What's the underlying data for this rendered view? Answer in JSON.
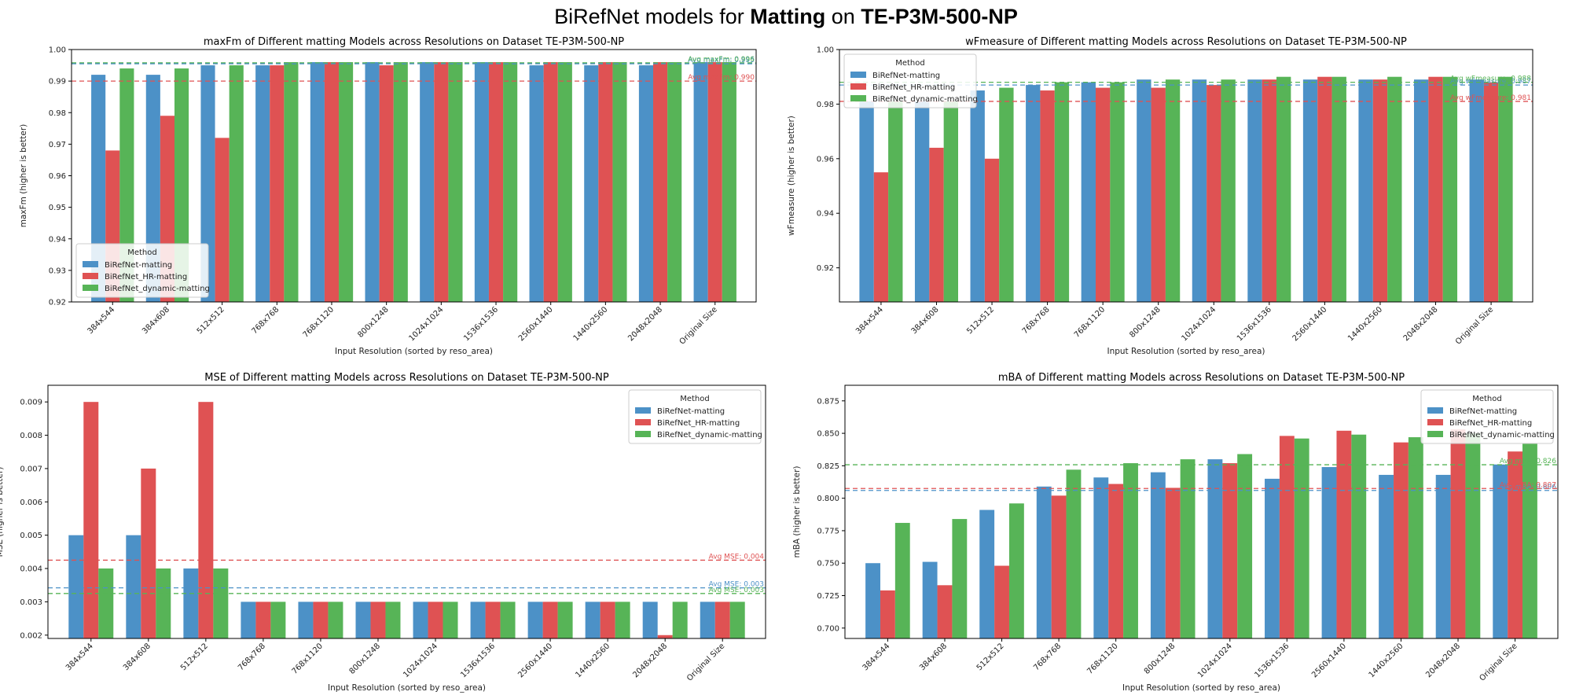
{
  "page": {
    "title_prefix": "BiRefNet models for ",
    "title_bold1": "Matting",
    "title_mid": " on ",
    "title_bold2": "TE-P3M-500-NP"
  },
  "colors": {
    "BiRefNet-matting": "#4c91c7",
    "BiRefNet_HR-matting": "#df5253",
    "BiRefNet_dynamic-matting": "#57b457"
  },
  "chart_data": [
    {
      "type": "bar",
      "title": "maxFm of Different matting Models across Resolutions on Dataset TE-P3M-500-NP",
      "xlabel": "Input Resolution (sorted by reso_area)",
      "ylabel": "maxFm (higher is better)",
      "ylim": [
        0.92,
        1.0
      ],
      "yticks": [
        "0.92",
        "0.93",
        "0.94",
        "0.95",
        "0.96",
        "0.97",
        "0.98",
        "0.99",
        "1.00"
      ],
      "legend_title": "Method",
      "legend_loc": "lower-left",
      "categories": [
        "384x544",
        "384x608",
        "512x512",
        "768x768",
        "768x1120",
        "800x1248",
        "1024x1024",
        "1536x1536",
        "2560x1440",
        "1440x2560",
        "2048x2048",
        "Original Size"
      ],
      "series": [
        {
          "name": "BiRefNet-matting",
          "values": [
            0.992,
            0.992,
            0.995,
            0.995,
            0.996,
            0.996,
            0.996,
            0.996,
            0.995,
            0.995,
            0.995,
            0.996
          ]
        },
        {
          "name": "BiRefNet_HR-matting",
          "values": [
            0.968,
            0.979,
            0.972,
            0.995,
            0.996,
            0.995,
            0.996,
            0.996,
            0.996,
            0.996,
            0.996,
            0.996
          ]
        },
        {
          "name": "BiRefNet_dynamic-matting",
          "values": [
            0.994,
            0.994,
            0.995,
            0.996,
            0.996,
            0.996,
            0.996,
            0.996,
            0.996,
            0.996,
            0.996,
            0.996
          ]
        }
      ],
      "averages": [
        {
          "series": "BiRefNet-matting",
          "value": 0.9955,
          "label": "Avg maxFm: 0.995"
        },
        {
          "series": "BiRefNet_HR-matting",
          "value": 0.99,
          "label": "Avg maxFm: 0.990"
        },
        {
          "series": "BiRefNet_dynamic-matting",
          "value": 0.9958,
          "label": "Avg maxFm: 0.996"
        }
      ]
    },
    {
      "type": "bar",
      "title": "wFmeasure of Different matting Models across Resolutions on Dataset TE-P3M-500-NP",
      "xlabel": "Input Resolution (sorted by reso_area)",
      "ylabel": "wFmeasure (higher is better)",
      "ylim": [
        0.9075,
        1.0
      ],
      "yticks": [
        "0.92",
        "0.94",
        "0.96",
        "0.98",
        "1.00"
      ],
      "legend_title": "Method",
      "legend_loc": "top-left",
      "categories": [
        "384x544",
        "384x608",
        "512x512",
        "768x768",
        "768x1120",
        "800x1248",
        "1024x1024",
        "1536x1536",
        "2560x1440",
        "1440x2560",
        "2048x2048",
        "Original Size"
      ],
      "series": [
        {
          "name": "BiRefNet-matting",
          "values": [
            0.981,
            0.981,
            0.985,
            0.987,
            0.988,
            0.989,
            0.989,
            0.989,
            0.989,
            0.989,
            0.989,
            0.989
          ]
        },
        {
          "name": "BiRefNet_HR-matting",
          "values": [
            0.955,
            0.964,
            0.96,
            0.985,
            0.986,
            0.986,
            0.987,
            0.989,
            0.99,
            0.989,
            0.99,
            0.988
          ]
        },
        {
          "name": "BiRefNet_dynamic-matting",
          "values": [
            0.981,
            0.981,
            0.986,
            0.988,
            0.988,
            0.989,
            0.989,
            0.99,
            0.99,
            0.99,
            0.99,
            0.99
          ]
        }
      ],
      "averages": [
        {
          "series": "BiRefNet-matting",
          "value": 0.987,
          "label": "Avg wFmeasure: 0.987"
        },
        {
          "series": "BiRefNet_HR-matting",
          "value": 0.981,
          "label": "Avg wFmeasure: 0.981"
        },
        {
          "series": "BiRefNet_dynamic-matting",
          "value": 0.988,
          "label": "Avg wFmeasure: 0.988"
        }
      ]
    },
    {
      "type": "bar",
      "title": "MSE of Different matting Models across Resolutions on Dataset TE-P3M-500-NP",
      "xlabel": "Input Resolution (sorted by reso_area)",
      "ylabel": "MSE (higher is better)",
      "ylim": [
        0.0019,
        0.0095
      ],
      "yticks": [
        "0.002",
        "0.003",
        "0.004",
        "0.005",
        "0.006",
        "0.007",
        "0.008",
        "0.009"
      ],
      "legend_title": "Method",
      "legend_loc": "top-right",
      "categories": [
        "384x544",
        "384x608",
        "512x512",
        "768x768",
        "768x1120",
        "800x1248",
        "1024x1024",
        "1536x1536",
        "2560x1440",
        "1440x2560",
        "2048x2048",
        "Original Size"
      ],
      "series": [
        {
          "name": "BiRefNet-matting",
          "values": [
            0.005,
            0.005,
            0.004,
            0.003,
            0.003,
            0.003,
            0.003,
            0.003,
            0.003,
            0.003,
            0.003,
            0.003
          ]
        },
        {
          "name": "BiRefNet_HR-matting",
          "values": [
            0.009,
            0.007,
            0.009,
            0.003,
            0.003,
            0.003,
            0.003,
            0.003,
            0.003,
            0.003,
            0.002,
            0.003
          ]
        },
        {
          "name": "BiRefNet_dynamic-matting",
          "values": [
            0.004,
            0.004,
            0.004,
            0.003,
            0.003,
            0.003,
            0.003,
            0.003,
            0.003,
            0.003,
            0.003,
            0.003
          ]
        }
      ],
      "averages": [
        {
          "series": "BiRefNet-matting",
          "value": 0.00342,
          "label": "Avg MSE: 0.003"
        },
        {
          "series": "BiRefNet_HR-matting",
          "value": 0.00425,
          "label": "Avg MSE: 0.004"
        },
        {
          "series": "BiRefNet_dynamic-matting",
          "value": 0.00325,
          "label": "Avg MSE: 0.003"
        }
      ]
    },
    {
      "type": "bar",
      "title": "mBA of Different matting Models across Resolutions on Dataset TE-P3M-500-NP",
      "xlabel": "Input Resolution (sorted by reso_area)",
      "ylabel": "mBA (higher is better)",
      "ylim": [
        0.692,
        0.887
      ],
      "yticks": [
        "0.700",
        "0.725",
        "0.750",
        "0.775",
        "0.800",
        "0.825",
        "0.850",
        "0.875"
      ],
      "legend_title": "Method",
      "legend_loc": "top-right",
      "categories": [
        "384x544",
        "384x608",
        "512x512",
        "768x768",
        "768x1120",
        "800x1248",
        "1024x1024",
        "1536x1536",
        "2560x1440",
        "1440x2560",
        "2048x2048",
        "Original Size"
      ],
      "series": [
        {
          "name": "BiRefNet-matting",
          "values": [
            0.75,
            0.751,
            0.791,
            0.809,
            0.816,
            0.82,
            0.83,
            0.815,
            0.824,
            0.818,
            0.818,
            0.826
          ]
        },
        {
          "name": "BiRefNet_HR-matting",
          "values": [
            0.729,
            0.733,
            0.748,
            0.802,
            0.811,
            0.808,
            0.827,
            0.848,
            0.852,
            0.843,
            0.853,
            0.836
          ]
        },
        {
          "name": "BiRefNet_dynamic-matting",
          "values": [
            0.781,
            0.784,
            0.796,
            0.822,
            0.827,
            0.83,
            0.834,
            0.846,
            0.849,
            0.847,
            0.85,
            0.842
          ]
        }
      ],
      "averages": [
        {
          "series": "BiRefNet-matting",
          "value": 0.806,
          "label": "Avg mBA: 0.806"
        },
        {
          "series": "BiRefNet_HR-matting",
          "value": 0.8075,
          "label": "Avg mBA: 0.807"
        },
        {
          "series": "BiRefNet_dynamic-matting",
          "value": 0.8258,
          "label": "Avg mBA: 0.826"
        }
      ]
    }
  ]
}
